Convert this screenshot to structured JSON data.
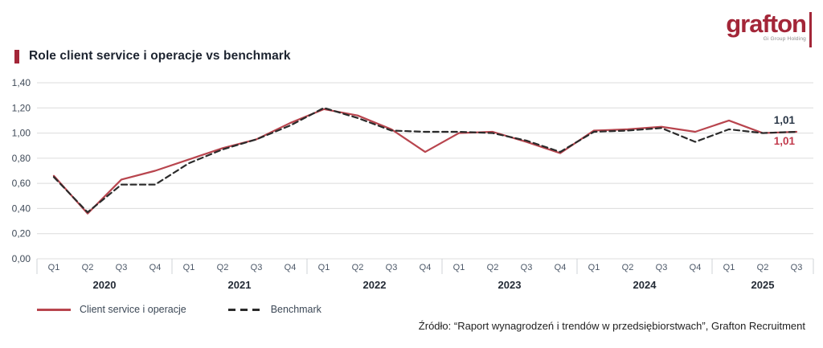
{
  "header": {
    "logo_word": "grafton",
    "logo_sub": "Gi Group Holding"
  },
  "title": {
    "text": "Role client service i operacje vs benchmark"
  },
  "colors": {
    "brand_red": "#a32638",
    "line_red": "#b8454e",
    "benchmark": "#2b2b2b",
    "navy_label": "#2a3747",
    "gridline": "#dcdcdc",
    "separator": "#cfd3d7"
  },
  "chart_data": {
    "type": "line",
    "title": "Role client service i operacje vs benchmark",
    "xlabel": "",
    "ylabel": "",
    "ylim": [
      0,
      1.4
    ],
    "grid": true,
    "legend_position": "bottom-left",
    "y_ticks": [
      "1,40",
      "1,20",
      "1,00",
      "0,80",
      "0,60",
      "0,40",
      "0,20",
      "0,00"
    ],
    "groups": [
      {
        "year": "2020",
        "quarters": [
          "Q1",
          "Q2",
          "Q3",
          "Q4"
        ]
      },
      {
        "year": "2021",
        "quarters": [
          "Q1",
          "Q2",
          "Q3",
          "Q4"
        ]
      },
      {
        "year": "2022",
        "quarters": [
          "Q1",
          "Q2",
          "Q3",
          "Q4"
        ]
      },
      {
        "year": "2023",
        "quarters": [
          "Q1",
          "Q2",
          "Q3",
          "Q4"
        ]
      },
      {
        "year": "2024",
        "quarters": [
          "Q1",
          "Q2",
          "Q3",
          "Q4"
        ]
      },
      {
        "year": "2025",
        "quarters": [
          "Q1",
          "Q2",
          "Q3"
        ]
      }
    ],
    "series": [
      {
        "name": "Client service i operacje",
        "color": "#b8454e",
        "dash": false,
        "values": [
          0.66,
          0.36,
          0.63,
          0.7,
          0.79,
          0.88,
          0.95,
          1.08,
          1.19,
          1.14,
          1.03,
          0.85,
          1.0,
          1.01,
          0.93,
          0.84,
          1.02,
          1.03,
          1.05,
          1.01,
          1.1,
          1.0,
          1.01
        ],
        "end_label": "1,01",
        "end_label_color": "#c23a4c"
      },
      {
        "name": "Benchmark",
        "color": "#2b2b2b",
        "dash": true,
        "values": [
          0.65,
          0.37,
          0.59,
          0.59,
          0.76,
          0.87,
          0.95,
          1.06,
          1.2,
          1.12,
          1.02,
          1.01,
          1.01,
          1.0,
          0.94,
          0.85,
          1.01,
          1.02,
          1.04,
          0.93,
          1.03,
          1.0,
          1.01
        ],
        "end_label": "1,01",
        "end_label_color": "#2a3747"
      }
    ]
  },
  "footer": {
    "source": "Źródło: “Raport wynagrodzeń i trendów w przedsiębiorstwach”, Grafton Recruitment"
  }
}
